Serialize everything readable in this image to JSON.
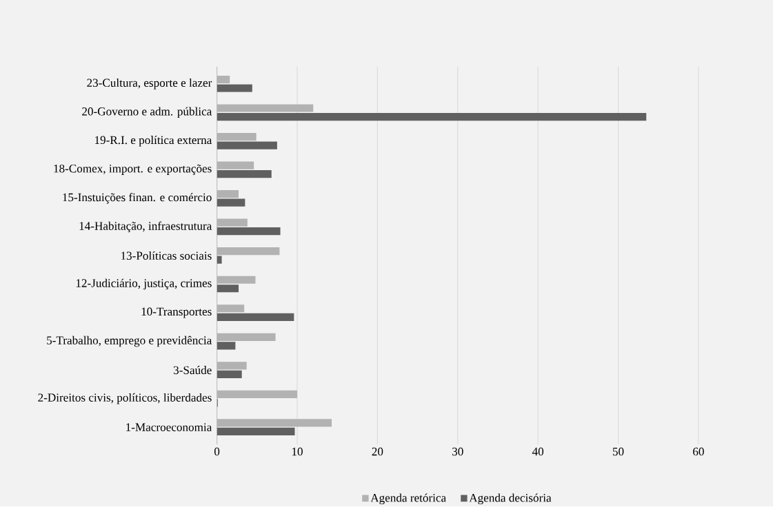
{
  "chart_data": {
    "type": "bar",
    "orientation": "horizontal",
    "categories": [
      "23-Cultura, esporte e lazer",
      "20-Governo e adm. pública",
      "19-R.I. e política externa",
      "18-Comex, import. e exportações",
      "15-Instuições finan. e comércio",
      "14-Habitação, infraestrutura",
      "13-Políticas sociais",
      "12-Judiciário, justiça, crimes",
      "10-Transportes",
      "5-Trabalho, emprego e previdência",
      "3-Saúde",
      "2-Direitos civis, políticos, liberdades",
      "1-Macroeconomia"
    ],
    "series": [
      {
        "name": "Agenda retórica",
        "color": "#b2b2b2",
        "values": [
          1.6,
          12.0,
          4.9,
          4.6,
          2.7,
          3.8,
          7.8,
          4.8,
          3.4,
          7.3,
          3.7,
          10.0,
          14.3
        ]
      },
      {
        "name": "Agenda decisória",
        "color": "#606060",
        "values": [
          4.4,
          53.5,
          7.5,
          6.8,
          3.5,
          7.9,
          0.6,
          2.7,
          9.6,
          2.3,
          3.1,
          0.1,
          9.7
        ]
      }
    ],
    "xlim": [
      0,
      60
    ],
    "xticks": [
      0,
      10,
      20,
      30,
      40,
      50,
      60
    ],
    "grid": "x",
    "legend": "bottom"
  }
}
